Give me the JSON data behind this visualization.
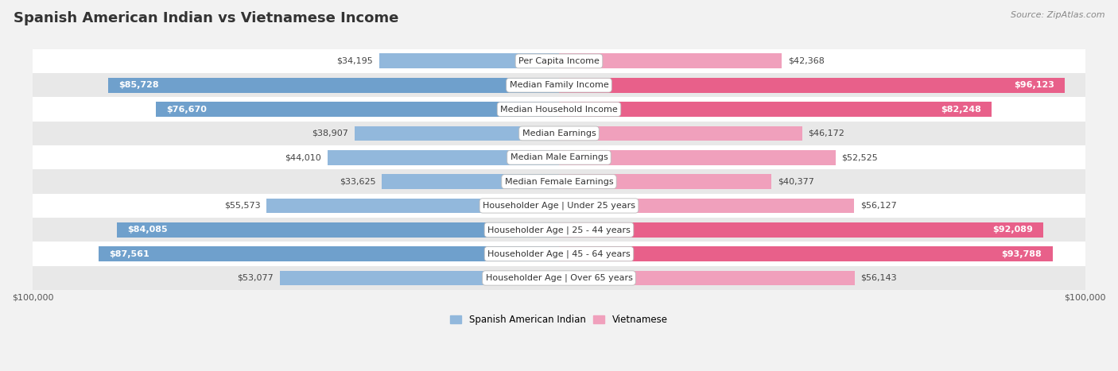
{
  "title": "Spanish American Indian vs Vietnamese Income",
  "source": "Source: ZipAtlas.com",
  "categories": [
    "Per Capita Income",
    "Median Family Income",
    "Median Household Income",
    "Median Earnings",
    "Median Male Earnings",
    "Median Female Earnings",
    "Householder Age | Under 25 years",
    "Householder Age | 25 - 44 years",
    "Householder Age | 45 - 64 years",
    "Householder Age | Over 65 years"
  ],
  "left_values": [
    34195,
    85728,
    76670,
    38907,
    44010,
    33625,
    55573,
    84085,
    87561,
    53077
  ],
  "right_values": [
    42368,
    96123,
    82248,
    46172,
    52525,
    40377,
    56127,
    92089,
    93788,
    56143
  ],
  "left_labels": [
    "$34,195",
    "$85,728",
    "$76,670",
    "$38,907",
    "$44,010",
    "$33,625",
    "$55,573",
    "$84,085",
    "$87,561",
    "$53,077"
  ],
  "right_labels": [
    "$42,368",
    "$96,123",
    "$82,248",
    "$46,172",
    "$52,525",
    "$40,377",
    "$56,127",
    "$92,089",
    "$93,788",
    "$56,143"
  ],
  "max_value": 100000,
  "bar_height": 0.62,
  "left_color": "#92b8dc",
  "right_color": "#f0a0bc",
  "left_color_large": "#6fa0cc",
  "right_color_large": "#e8608a",
  "bg_color": "#f2f2f2",
  "row_bg_colors": [
    "#ffffff",
    "#e8e8e8"
  ],
  "label_in_bar_color": "#ffffff",
  "label_outside_color": "#444444",
  "legend_left": "Spanish American Indian",
  "legend_right": "Vietnamese",
  "title_fontsize": 13,
  "source_fontsize": 8,
  "label_fontsize": 8,
  "category_fontsize": 8,
  "axis_label_fontsize": 8,
  "large_threshold": 60000
}
